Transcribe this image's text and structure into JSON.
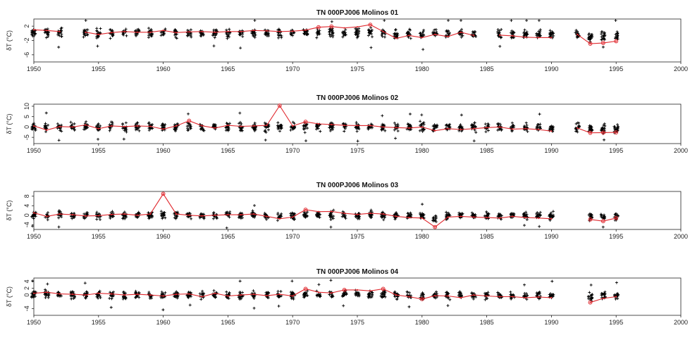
{
  "chart_data": [
    {
      "type": "scatter",
      "title": "TN 000PJ006 Molinos 01",
      "ylabel": "δT (°C)",
      "xlim": [
        1950,
        2000
      ],
      "ylim": [
        -8,
        4
      ],
      "x_ticks": [
        "1950",
        "1955",
        "1960",
        "1965",
        "1970",
        "1975",
        "1980",
        "1985",
        "1990",
        "1995",
        "2000"
      ],
      "y_ticks": [
        "2",
        "-2",
        "-6"
      ],
      "mean_series": {
        "x": [
          1950,
          1951,
          1952,
          null,
          1954,
          1955,
          1956,
          1957,
          1958,
          1959,
          1960,
          1961,
          1962,
          1963,
          1964,
          1965,
          1966,
          1967,
          1968,
          1969,
          1970,
          1971,
          1972,
          1973,
          1974,
          1975,
          1976,
          1977,
          1978,
          1979,
          1980,
          1981,
          1982,
          1983,
          1984,
          null,
          1986,
          1987,
          1988,
          1989,
          1990,
          null,
          1992,
          1993,
          1994,
          1995
        ],
        "y": [
          1.0,
          0.8,
          0.5,
          null,
          0.3,
          -0.3,
          0.2,
          0.5,
          0.3,
          0.3,
          0.8,
          0.2,
          0.4,
          0.5,
          0.3,
          0.5,
          0.5,
          0.8,
          0.7,
          0.5,
          0.6,
          0.9,
          1.7,
          1.9,
          1.5,
          1.8,
          2.4,
          0.5,
          -1.4,
          -0.6,
          -1.2,
          -0.3,
          -0.9,
          0.3,
          -0.6,
          null,
          -0.5,
          -0.7,
          -1.1,
          -1.2,
          -1.2,
          null,
          -0.3,
          -2.9,
          -2.7,
          -2.2
        ]
      },
      "marked_points": [
        {
          "x": 1972,
          "y": 1.7
        },
        {
          "x": 1973,
          "y": 1.9
        },
        {
          "x": 1976,
          "y": 2.4
        },
        {
          "x": 1993,
          "y": -2.9
        },
        {
          "x": 1994,
          "y": -2.7
        },
        {
          "x": 1995,
          "y": -2.2
        }
      ],
      "spread": 1.8
    },
    {
      "type": "scatter",
      "title": "TN 000PJ006 Molinos 02",
      "ylabel": "δT (°C)",
      "xlim": [
        1950,
        2000
      ],
      "ylim": [
        -8,
        11
      ],
      "x_ticks": [
        "1950",
        "1955",
        "1960",
        "1965",
        "1970",
        "1975",
        "1980",
        "1985",
        "1990",
        "1995",
        "2000"
      ],
      "y_ticks": [
        "10",
        "5",
        "0",
        "-5"
      ],
      "mean_series": {
        "x": [
          1950,
          1951,
          1952,
          1953,
          1954,
          1955,
          1956,
          1957,
          1958,
          1959,
          1960,
          1961,
          1962,
          1963,
          1964,
          1965,
          1966,
          1967,
          1968,
          1969,
          1970,
          1971,
          1972,
          1973,
          1974,
          1975,
          1976,
          1977,
          1978,
          1979,
          1980,
          1981,
          1982,
          1983,
          1984,
          1985,
          1986,
          1987,
          1988,
          1989,
          1990,
          null,
          1992,
          1993,
          1994,
          1995
        ],
        "y": [
          0.5,
          -1.5,
          0.2,
          0.0,
          1.0,
          -0.8,
          0.5,
          0.2,
          0.5,
          0.3,
          -1.0,
          0.5,
          3.0,
          0.6,
          -0.5,
          0.8,
          0.3,
          0.5,
          0.8,
          10.3,
          0.5,
          2.5,
          1.5,
          1.2,
          0.8,
          0.7,
          0.7,
          0.0,
          -0.3,
          -0.5,
          0.0,
          -1.8,
          -0.8,
          -1.2,
          -0.8,
          -0.3,
          0.0,
          -1.0,
          -0.8,
          -1.2,
          -2.0,
          null,
          -0.5,
          -2.8,
          -2.7,
          -2.6
        ]
      },
      "marked_points": [
        {
          "x": 1962,
          "y": 3.0
        },
        {
          "x": 1969,
          "y": 10.3
        },
        {
          "x": 1971,
          "y": 2.5
        },
        {
          "x": 1993,
          "y": -2.8
        },
        {
          "x": 1994,
          "y": -2.7
        },
        {
          "x": 1995,
          "y": -2.6
        }
      ],
      "spread": 3.0
    },
    {
      "type": "scatter",
      "title": "TN 000PJ006 Molinos 03",
      "ylabel": "δT (°C)",
      "xlim": [
        1950,
        2000
      ],
      "ylim": [
        -6,
        10
      ],
      "x_ticks": [
        "1950",
        "1955",
        "1960",
        "1965",
        "1970",
        "1975",
        "1980",
        "1985",
        "1990",
        "1995",
        "2000"
      ],
      "y_ticks": [
        "8",
        "4",
        "0",
        "-4"
      ],
      "mean_series": {
        "x": [
          1950,
          1951,
          1952,
          1953,
          1954,
          1955,
          1956,
          1957,
          1958,
          1959,
          1960,
          1961,
          1962,
          1963,
          1964,
          1965,
          1966,
          1967,
          1968,
          1969,
          1970,
          1971,
          1972,
          1973,
          1974,
          1975,
          1976,
          1977,
          1978,
          1979,
          1980,
          1981,
          1982,
          1983,
          1984,
          1985,
          1986,
          1987,
          1988,
          1989,
          1990,
          null,
          1993,
          1994,
          1995
        ],
        "y": [
          1.0,
          -0.5,
          0.5,
          0.2,
          -0.3,
          -0.2,
          0.3,
          0.5,
          0.0,
          0.5,
          9.0,
          0.5,
          0.0,
          -0.3,
          0.0,
          0.2,
          0.2,
          0.5,
          -0.5,
          -1.5,
          -0.8,
          2.3,
          1.5,
          1.6,
          0.8,
          0.3,
          0.8,
          0.5,
          -0.5,
          -1.0,
          -1.2,
          -5.0,
          -0.8,
          -0.5,
          -0.8,
          -1.0,
          -1.2,
          -0.5,
          -1.0,
          -1.2,
          -1.5,
          null,
          -1.8,
          -2.5,
          -1.2
        ]
      },
      "marked_points": [
        {
          "x": 1960,
          "y": 9.0
        },
        {
          "x": 1971,
          "y": 2.3
        },
        {
          "x": 1981,
          "y": -5.0
        },
        {
          "x": 1993,
          "y": -1.8
        },
        {
          "x": 1994,
          "y": -2.5
        },
        {
          "x": 1995,
          "y": -1.2
        }
      ],
      "spread": 2.2
    },
    {
      "type": "scatter",
      "title": "TN 000PJ006 Molinos 04",
      "ylabel": "δT (°C)",
      "xlim": [
        1950,
        2000
      ],
      "ylim": [
        -6,
        5
      ],
      "x_ticks": [
        "1950",
        "1955",
        "1960",
        "1965",
        "1970",
        "1975",
        "1980",
        "1985",
        "1990",
        "1995",
        "2000"
      ],
      "y_ticks": [
        "4",
        "2",
        "0",
        "-4"
      ],
      "mean_series": {
        "x": [
          1950,
          1951,
          1952,
          1953,
          1954,
          1955,
          1956,
          1957,
          1958,
          1959,
          1960,
          1961,
          1962,
          1963,
          1964,
          1965,
          1966,
          1967,
          1968,
          1969,
          1970,
          1971,
          1972,
          1973,
          1974,
          1975,
          1976,
          1977,
          1978,
          1979,
          1980,
          1981,
          1982,
          1983,
          1984,
          1985,
          1986,
          1987,
          1988,
          1989,
          1990,
          null,
          1993,
          1994,
          1995
        ],
        "y": [
          0.5,
          0.8,
          0.3,
          0.2,
          0.0,
          0.5,
          0.3,
          0.0,
          0.2,
          0.0,
          -0.3,
          0.2,
          0.3,
          -0.5,
          0.5,
          -0.3,
          0.0,
          0.2,
          -0.2,
          0.2,
          -0.3,
          1.8,
          0.8,
          0.6,
          1.5,
          1.5,
          1.2,
          1.8,
          0.0,
          -0.5,
          -1.2,
          -0.2,
          -0.3,
          -0.8,
          0.0,
          -0.3,
          -0.5,
          -0.5,
          -0.8,
          -0.6,
          -0.8,
          null,
          -2.2,
          -1.0,
          -0.5
        ]
      },
      "marked_points": [
        {
          "x": 1971,
          "y": 1.8
        },
        {
          "x": 1974,
          "y": 1.5
        },
        {
          "x": 1977,
          "y": 1.8
        },
        {
          "x": 1980,
          "y": -1.2
        },
        {
          "x": 1993,
          "y": -2.2
        }
      ],
      "spread": 1.6
    }
  ]
}
